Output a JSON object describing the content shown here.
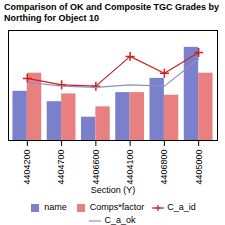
{
  "chart_data": {
    "type": "bar",
    "title": "Comparison of OK and Composite TGC Grades by Northing for Object 10",
    "xlabel": "Section (Y)",
    "categories": [
      "4404200",
      "4404700",
      "4406600",
      "4404100",
      "4406800",
      "4405000"
    ],
    "series": [
      {
        "name": "name",
        "type": "bar",
        "color": "#7b80cc",
        "values": [
          0.38,
          0.3,
          0.18,
          0.37,
          0.48,
          0.72
        ]
      },
      {
        "name": "Comps*factor",
        "type": "bar",
        "color": "#e88080",
        "values": [
          0.52,
          0.36,
          0.26,
          0.37,
          0.35,
          0.52
        ]
      },
      {
        "name": "C_a_id",
        "type": "line",
        "color": "#cc2020",
        "marker": "plus",
        "values": [
          0.48,
          0.43,
          0.42,
          0.65,
          0.52,
          0.68
        ]
      },
      {
        "name": "C_a_ok",
        "type": "line",
        "color": "#9090bb",
        "values": [
          0.45,
          0.42,
          0.41,
          0.43,
          0.42,
          0.63
        ]
      }
    ],
    "ylim": [
      0,
      0.85
    ],
    "yticks": [],
    "grid": false,
    "tick_labels": "x",
    "legend": "bottom"
  }
}
